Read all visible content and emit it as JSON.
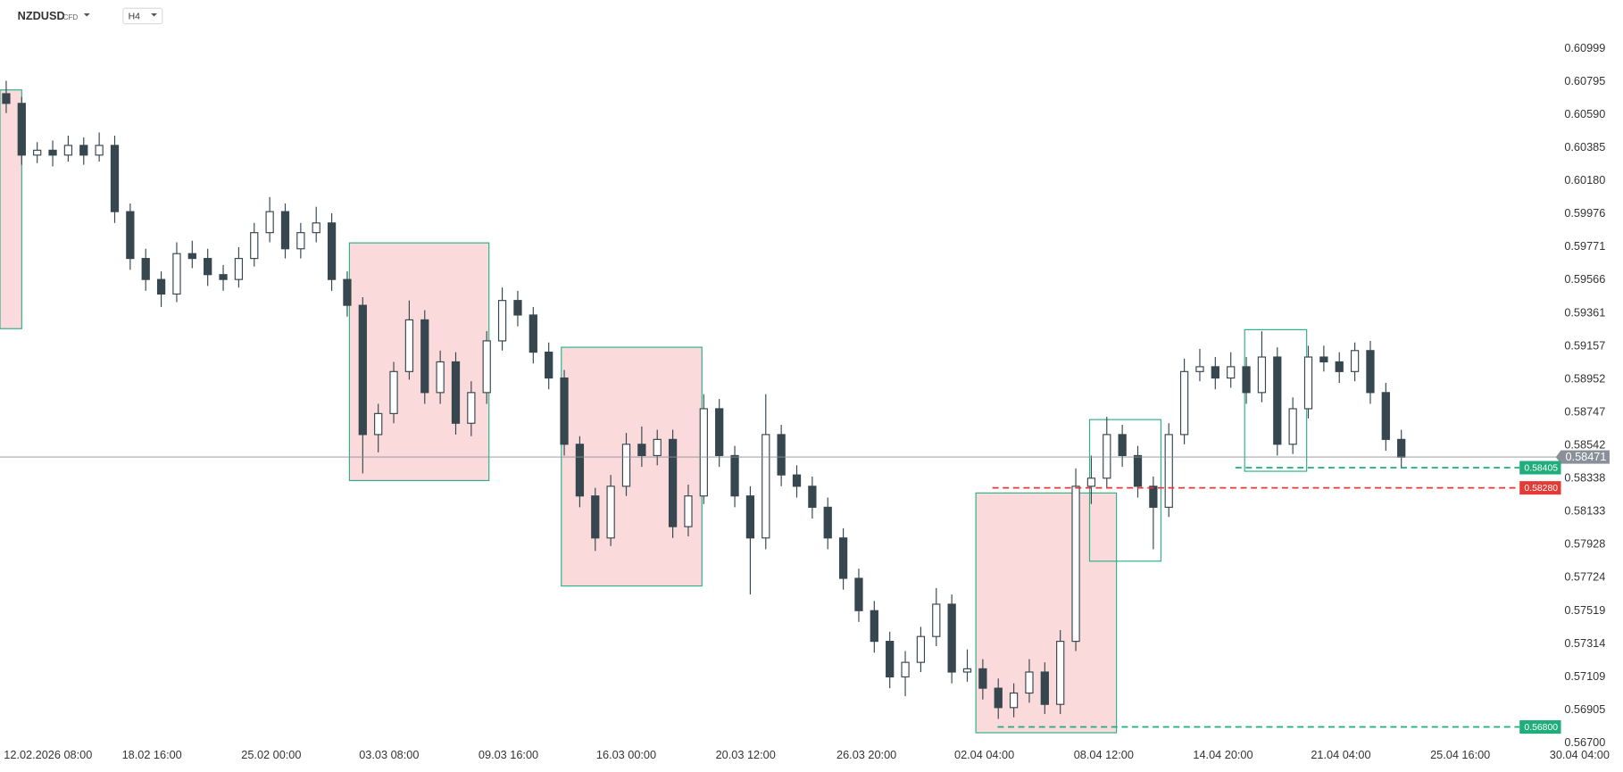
{
  "header": {
    "symbol": "NZDUSD",
    "market": "CFD",
    "interval": "H4"
  },
  "chart_data": {
    "type": "candlestick",
    "up_color": "#ffffff",
    "down_color": "#37474f",
    "outline_color": "#37474f",
    "ohlc": [
      [
        0.6072,
        0.608,
        0.606,
        0.6066
      ],
      [
        0.6066,
        0.607,
        0.6028,
        0.6034
      ],
      [
        0.6034,
        0.6042,
        0.6029,
        0.6037
      ],
      [
        0.6037,
        0.6043,
        0.6027,
        0.6034
      ],
      [
        0.6034,
        0.6046,
        0.603,
        0.604
      ],
      [
        0.604,
        0.6045,
        0.6028,
        0.6034
      ],
      [
        0.6034,
        0.6048,
        0.603,
        0.604
      ],
      [
        0.604,
        0.6046,
        0.5992,
        0.5999
      ],
      [
        0.5999,
        0.6004,
        0.5963,
        0.597
      ],
      [
        0.597,
        0.5976,
        0.595,
        0.5957
      ],
      [
        0.5957,
        0.5962,
        0.594,
        0.5948
      ],
      [
        0.5948,
        0.598,
        0.5943,
        0.5973
      ],
      [
        0.5973,
        0.5981,
        0.5964,
        0.597
      ],
      [
        0.597,
        0.5976,
        0.5953,
        0.596
      ],
      [
        0.596,
        0.5966,
        0.595,
        0.5957
      ],
      [
        0.5957,
        0.5977,
        0.5952,
        0.597
      ],
      [
        0.597,
        0.5992,
        0.5965,
        0.5986
      ],
      [
        0.5986,
        0.6008,
        0.598,
        0.5999
      ],
      [
        0.5999,
        0.6004,
        0.597,
        0.5976
      ],
      [
        0.5976,
        0.5992,
        0.597,
        0.5986
      ],
      [
        0.5986,
        0.6002,
        0.598,
        0.5992
      ],
      [
        0.5992,
        0.5998,
        0.595,
        0.5957
      ],
      [
        0.5957,
        0.5962,
        0.5934,
        0.5941
      ],
      [
        0.5941,
        0.5946,
        0.5837,
        0.5861
      ],
      [
        0.5861,
        0.588,
        0.585,
        0.5874
      ],
      [
        0.5874,
        0.5906,
        0.5868,
        0.59
      ],
      [
        0.59,
        0.5944,
        0.5895,
        0.5932
      ],
      [
        0.5932,
        0.5938,
        0.588,
        0.5887
      ],
      [
        0.5887,
        0.5913,
        0.588,
        0.5906
      ],
      [
        0.5906,
        0.5912,
        0.5861,
        0.5868
      ],
      [
        0.5868,
        0.5894,
        0.586,
        0.5887
      ],
      [
        0.5887,
        0.5925,
        0.588,
        0.5919
      ],
      [
        0.5919,
        0.5952,
        0.5913,
        0.5944
      ],
      [
        0.5944,
        0.595,
        0.5928,
        0.5935
      ],
      [
        0.5935,
        0.594,
        0.5905,
        0.5912
      ],
      [
        0.5912,
        0.5918,
        0.5889,
        0.5896
      ],
      [
        0.5896,
        0.5901,
        0.5848,
        0.5855
      ],
      [
        0.5855,
        0.586,
        0.5816,
        0.5823
      ],
      [
        0.5823,
        0.5828,
        0.5789,
        0.5797
      ],
      [
        0.5797,
        0.5836,
        0.5792,
        0.5829
      ],
      [
        0.5829,
        0.5862,
        0.5823,
        0.5855
      ],
      [
        0.5855,
        0.5866,
        0.5841,
        0.5848
      ],
      [
        0.5848,
        0.5864,
        0.5842,
        0.5858
      ],
      [
        0.5858,
        0.5864,
        0.5797,
        0.5804
      ],
      [
        0.5804,
        0.583,
        0.5798,
        0.5823
      ],
      [
        0.5823,
        0.5886,
        0.5818,
        0.5877
      ],
      [
        0.5877,
        0.5883,
        0.5841,
        0.5848
      ],
      [
        0.5848,
        0.5854,
        0.5816,
        0.5823
      ],
      [
        0.5823,
        0.5829,
        0.5762,
        0.5797
      ],
      [
        0.5797,
        0.5886,
        0.579,
        0.5861
      ],
      [
        0.5861,
        0.5867,
        0.5829,
        0.5836
      ],
      [
        0.5836,
        0.5842,
        0.5822,
        0.5829
      ],
      [
        0.5829,
        0.5835,
        0.5809,
        0.5816
      ],
      [
        0.5816,
        0.5822,
        0.579,
        0.5797
      ],
      [
        0.5797,
        0.5803,
        0.5765,
        0.5772
      ],
      [
        0.5772,
        0.5778,
        0.5745,
        0.5752
      ],
      [
        0.5752,
        0.5758,
        0.5726,
        0.5733
      ],
      [
        0.5733,
        0.5739,
        0.5704,
        0.5711
      ],
      [
        0.5711,
        0.5727,
        0.5699,
        0.572
      ],
      [
        0.572,
        0.5742,
        0.5714,
        0.5736
      ],
      [
        0.5736,
        0.5766,
        0.573,
        0.5756
      ],
      [
        0.5756,
        0.5762,
        0.5707,
        0.5714
      ],
      [
        0.5714,
        0.5728,
        0.5708,
        0.5716
      ],
      [
        0.5716,
        0.5722,
        0.5697,
        0.5704
      ],
      [
        0.5704,
        0.571,
        0.5685,
        0.5692
      ],
      [
        0.5692,
        0.5707,
        0.5686,
        0.5701
      ],
      [
        0.5701,
        0.5722,
        0.5695,
        0.5714
      ],
      [
        0.5714,
        0.572,
        0.5688,
        0.5694
      ],
      [
        0.5694,
        0.574,
        0.5688,
        0.5733
      ],
      [
        0.5733,
        0.584,
        0.5727,
        0.5829
      ],
      [
        0.5829,
        0.5848,
        0.5818,
        0.5834
      ],
      [
        0.5834,
        0.5872,
        0.5828,
        0.5861
      ],
      [
        0.5861,
        0.5867,
        0.5841,
        0.5848
      ],
      [
        0.5848,
        0.5854,
        0.5822,
        0.5829
      ],
      [
        0.5829,
        0.5835,
        0.579,
        0.5816
      ],
      [
        0.5816,
        0.5868,
        0.581,
        0.5861
      ],
      [
        0.5861,
        0.5908,
        0.5855,
        0.59
      ],
      [
        0.59,
        0.5914,
        0.5894,
        0.5903
      ],
      [
        0.5903,
        0.5909,
        0.5889,
        0.5896
      ],
      [
        0.5896,
        0.5912,
        0.589,
        0.5903
      ],
      [
        0.5903,
        0.5909,
        0.588,
        0.5887
      ],
      [
        0.5887,
        0.5925,
        0.5881,
        0.5909
      ],
      [
        0.5909,
        0.5915,
        0.5848,
        0.5855
      ],
      [
        0.5855,
        0.5884,
        0.5849,
        0.5877
      ],
      [
        0.5877,
        0.5916,
        0.5871,
        0.5909
      ],
      [
        0.5909,
        0.5916,
        0.59,
        0.5906
      ],
      [
        0.5906,
        0.5912,
        0.5893,
        0.59
      ],
      [
        0.59,
        0.5918,
        0.5894,
        0.5913
      ],
      [
        0.5913,
        0.5919,
        0.588,
        0.5887
      ],
      [
        0.5887,
        0.5893,
        0.5851,
        0.5858
      ],
      [
        0.5858,
        0.5864,
        0.584,
        0.5847
      ]
    ],
    "xlim": [
      -0.4,
      103.3
    ],
    "xticks": [
      {
        "value": 2.7,
        "label": "12.02.2026 08:00"
      },
      {
        "value": 9.4,
        "label": "18.02 16:00"
      },
      {
        "value": 17.1,
        "label": "25.02 00:00"
      },
      {
        "value": 24.7,
        "label": "03.03 08:00"
      },
      {
        "value": 32.4,
        "label": "09.03 16:00"
      },
      {
        "value": 40,
        "label": "16.03 00:00"
      },
      {
        "value": 47.7,
        "label": "20.03 12:00"
      },
      {
        "value": 55.5,
        "label": "26.03 20:00"
      },
      {
        "value": 63.1,
        "label": "02.04 04:00"
      },
      {
        "value": 70.8,
        "label": "08.04 12:00"
      },
      {
        "value": 78.5,
        "label": "14.04 20:00"
      },
      {
        "value": 86.1,
        "label": "21.04 04:00"
      },
      {
        "value": 93.8,
        "label": "25.04 16:00"
      },
      {
        "value": 101.5,
        "label": "30.04 04:00"
      }
    ],
    "ylim": [
      0.56662,
      0.613
    ],
    "yticks": [
      0.60999,
      0.60795,
      {
        "value": 0.6059,
        "label": "0.60590"
      },
      0.60385,
      {
        "value": 0.6018,
        "label": "0.60180"
      },
      0.59976,
      0.59771,
      0.59566,
      0.59361,
      0.59157,
      0.58952,
      0.58747,
      0.58542,
      0.58338,
      0.58133,
      0.57928,
      0.57724,
      0.57519,
      0.57314,
      0.57109,
      0.56905,
      {
        "value": 0.567,
        "label": "0.56700"
      }
    ],
    "price_lines": [
      {
        "value": 0.58471,
        "color": "#8a8f99",
        "style": "solid"
      },
      {
        "value": 0.58405,
        "color": "#1fae7b",
        "style": "dashed"
      },
      {
        "value": 0.5828,
        "label": "0.58280",
        "color": "#e53935",
        "style": "dashed"
      },
      {
        "value": 0.568,
        "label": "0.56800",
        "color": "#1fae7b",
        "style": "dashed"
      }
    ]
  }
}
